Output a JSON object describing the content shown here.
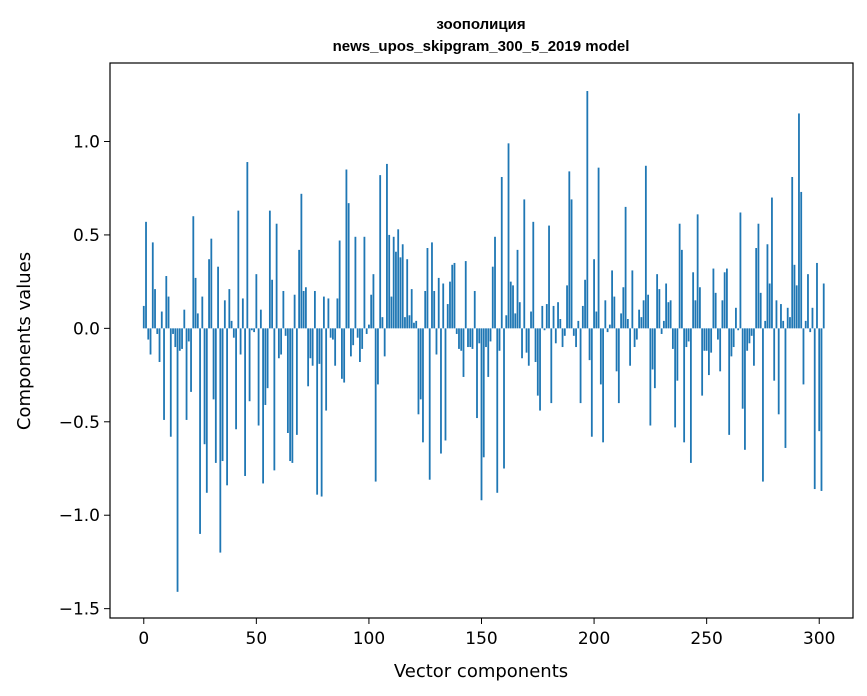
{
  "chart_data": {
    "type": "bar",
    "title": "зоополиция",
    "subtitle": "news_upos_skipgram_300_5_2019 model",
    "xlabel": "Vector components",
    "ylabel": "Components values",
    "xlim": [
      -15,
      315
    ],
    "ylim": [
      -1.55,
      1.42
    ],
    "xticks": [
      0,
      50,
      100,
      150,
      200,
      250,
      300
    ],
    "yticks": [
      -1.5,
      -1.0,
      -0.5,
      0.0,
      0.5,
      1.0
    ],
    "ytick_labels": [
      "−1.5",
      "−1.0",
      "−0.5",
      "0.0",
      "0.5",
      "1.0"
    ],
    "bar_color": "#1f77b4",
    "grid": false,
    "x_start": 0,
    "values": [
      0.12,
      0.57,
      -0.06,
      -0.14,
      0.46,
      0.21,
      -0.03,
      -0.18,
      0.09,
      -0.49,
      0.28,
      0.17,
      -0.58,
      -0.03,
      -0.1,
      -1.41,
      -0.12,
      -0.11,
      0.1,
      -0.49,
      -0.07,
      -0.34,
      0.6,
      0.27,
      0.08,
      -1.1,
      0.17,
      -0.62,
      -0.88,
      0.37,
      0.48,
      -0.38,
      -0.72,
      0.33,
      -1.2,
      -0.71,
      0.15,
      -0.84,
      0.21,
      0.04,
      -0.05,
      -0.54,
      0.63,
      -0.14,
      0.16,
      -0.79,
      0.89,
      -0.39,
      -0.01,
      -0.02,
      0.29,
      -0.52,
      0.1,
      -0.83,
      -0.41,
      -0.32,
      0.63,
      0.26,
      -0.76,
      0.56,
      -0.16,
      -0.14,
      0.2,
      -0.04,
      -0.56,
      -0.71,
      -0.72,
      0.18,
      -0.57,
      0.42,
      0.72,
      0.2,
      0.22,
      -0.31,
      -0.16,
      -0.2,
      0.2,
      -0.89,
      -0.19,
      -0.9,
      0.17,
      -0.44,
      0.16,
      -0.05,
      -0.06,
      -0.2,
      0.16,
      0.47,
      -0.27,
      -0.29,
      0.85,
      0.67,
      -0.15,
      -0.09,
      0.49,
      -0.05,
      -0.18,
      -0.11,
      0.49,
      -0.03,
      0.02,
      0.18,
      0.29,
      -0.82,
      -0.3,
      0.82,
      0.06,
      -0.15,
      0.88,
      0.5,
      0.17,
      0.49,
      0.41,
      0.53,
      0.38,
      0.45,
      0.06,
      0.37,
      0.07,
      0.21,
      0.03,
      0.04,
      -0.46,
      -0.38,
      -0.61,
      0.2,
      0.43,
      -0.81,
      0.46,
      0.2,
      -0.14,
      0.27,
      -0.67,
      0.24,
      -0.6,
      0.13,
      0.25,
      0.34,
      0.35,
      -0.03,
      -0.11,
      -0.12,
      -0.26,
      0.36,
      -0.1,
      -0.1,
      -0.11,
      0.2,
      -0.48,
      -0.08,
      -0.92,
      -0.69,
      -0.1,
      -0.26,
      -0.07,
      0.33,
      0.49,
      -0.88,
      -0.12,
      0.81,
      -0.75,
      0.07,
      0.99,
      0.25,
      0.23,
      0.08,
      0.42,
      0.14,
      -0.16,
      0.69,
      -0.13,
      -0.2,
      0.09,
      0.57,
      -0.18,
      -0.36,
      -0.44,
      0.12,
      -0.01,
      0.13,
      0.55,
      -0.4,
      0.12,
      -0.08,
      0.14,
      0.05,
      -0.1,
      -0.04,
      0.23,
      0.84,
      0.69,
      -0.04,
      -0.1,
      0.04,
      -0.4,
      0.12,
      0.26,
      1.27,
      -0.17,
      -0.58,
      0.37,
      0.09,
      0.86,
      -0.3,
      -0.61,
      0.15,
      -0.02,
      0.02,
      0.31,
      0.17,
      -0.23,
      -0.4,
      0.08,
      0.22,
      0.65,
      0.05,
      -0.2,
      0.31,
      -0.1,
      -0.06,
      0.1,
      0.06,
      0.15,
      0.87,
      0.18,
      -0.52,
      -0.22,
      -0.32,
      0.29,
      0.21,
      -0.03,
      0.04,
      0.24,
      0.14,
      0.15,
      -0.11,
      -0.53,
      -0.28,
      0.56,
      0.42,
      -0.61,
      -0.1,
      -0.07,
      -0.72,
      0.3,
      0.15,
      0.61,
      0.22,
      -0.36,
      -0.12,
      -0.12,
      -0.25,
      -0.13,
      0.32,
      0.19,
      -0.06,
      -0.23,
      0.15,
      0.3,
      0.32,
      -0.57,
      -0.15,
      -0.1,
      0.11,
      -0.01,
      0.62,
      -0.43,
      -0.65,
      -0.12,
      -0.08,
      -0.04,
      -0.2,
      0.43,
      0.56,
      0.19,
      -0.82,
      0.04,
      0.45,
      0.24,
      0.7,
      -0.28,
      0.15,
      -0.46,
      0.13,
      0.04,
      -0.64,
      0.11,
      0.06,
      0.81,
      0.34,
      0.23,
      1.15,
      0.73,
      -0.3,
      0.04,
      0.29,
      -0.02,
      0.11,
      -0.86,
      0.35,
      -0.55,
      -0.87,
      0.24
    ]
  }
}
